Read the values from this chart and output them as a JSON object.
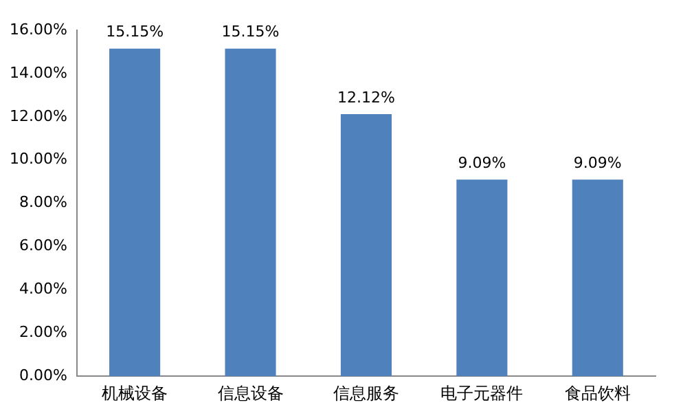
{
  "chart_data": {
    "type": "bar",
    "categories": [
      "机械设备",
      "信息设备",
      "信息服务",
      "电子元器件",
      "食品饮料"
    ],
    "values": [
      15.15,
      15.15,
      12.12,
      9.09,
      9.09
    ],
    "color": "#4f81bd",
    "value_labels": [
      "15.15%",
      "15.15%",
      "12.12%",
      "9.09%",
      "9.09%"
    ],
    "ylim": [
      0,
      16
    ],
    "yticks": [
      {
        "value": 0,
        "label": "0.00%"
      },
      {
        "value": 2,
        "label": "2.00%"
      },
      {
        "value": 4,
        "label": "4.00%"
      },
      {
        "value": 6,
        "label": "6.00%"
      },
      {
        "value": 8,
        "label": "8.00%"
      },
      {
        "value": 10,
        "label": "10.00%"
      },
      {
        "value": 12,
        "label": "12.00%"
      },
      {
        "value": 14,
        "label": "14.00%"
      },
      {
        "value": 16,
        "label": "16.00%"
      }
    ],
    "grid": false,
    "legend": false
  }
}
